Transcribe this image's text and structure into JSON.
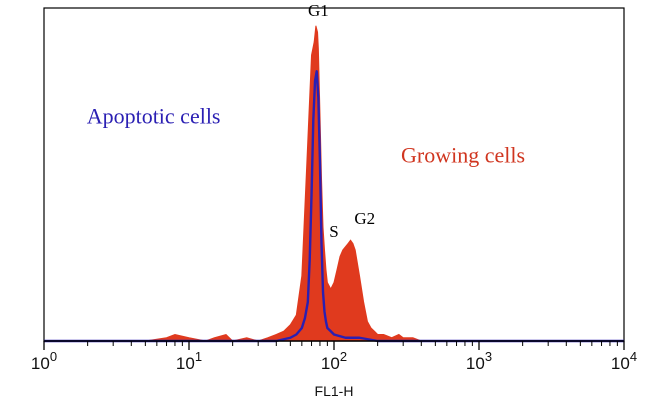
{
  "chart_data": {
    "type": "area",
    "title": "",
    "xlabel": "FL1-H",
    "ylabel": "",
    "x_scale": "log",
    "xlim": [
      1,
      10000
    ],
    "ylim": [
      0,
      100
    ],
    "grid": false,
    "ticks": [
      {
        "value": 1,
        "base": "10",
        "exp": "0"
      },
      {
        "value": 10,
        "base": "10",
        "exp": "1"
      },
      {
        "value": 100,
        "base": "10",
        "exp": "2"
      },
      {
        "value": 1000,
        "base": "10",
        "exp": "3"
      },
      {
        "value": 10000,
        "base": "10",
        "exp": "4"
      }
    ],
    "series": [
      {
        "name": "Growing cells",
        "color": "#e03a1e",
        "style": "filled",
        "x": [
          1,
          5,
          7,
          8,
          10,
          13,
          15,
          18,
          20,
          25,
          30,
          35,
          40,
          45,
          50,
          55,
          60,
          65,
          70,
          73,
          75,
          77,
          78,
          80,
          82,
          84,
          86,
          88,
          90,
          95,
          100,
          105,
          110,
          115,
          120,
          125,
          130,
          135,
          140,
          150,
          160,
          170,
          180,
          190,
          200,
          220,
          250,
          280,
          300,
          350,
          400,
          1000,
          10000
        ],
        "y": [
          0,
          0,
          1,
          2,
          1,
          0,
          1,
          2,
          0,
          1,
          0,
          1,
          2,
          3,
          5,
          8,
          20,
          55,
          88,
          92,
          97,
          95,
          90,
          70,
          50,
          35,
          28,
          22,
          18,
          16,
          18,
          22,
          26,
          28,
          29,
          30,
          31,
          30,
          28,
          20,
          12,
          6,
          4,
          3,
          2,
          2,
          1,
          2,
          1,
          1,
          0,
          0,
          0
        ]
      },
      {
        "name": "Apoptotic cells",
        "color": "#2a1fb3",
        "style": "line",
        "x": [
          1,
          20,
          40,
          50,
          55,
          60,
          63,
          66,
          68,
          70,
          72,
          74,
          76,
          78,
          80,
          82,
          84,
          86,
          88,
          90,
          95,
          100,
          120,
          150,
          200,
          1000,
          10000
        ],
        "y": [
          0,
          0,
          0,
          1,
          2,
          4,
          7,
          12,
          25,
          45,
          68,
          80,
          83,
          75,
          55,
          30,
          15,
          9,
          6,
          4,
          3,
          2,
          1,
          1,
          0,
          0,
          0
        ]
      }
    ],
    "annotations": [
      {
        "label": "G1",
        "x": 78,
        "y": 100,
        "color": "#000000"
      },
      {
        "label": "S",
        "x": 100,
        "y": 32,
        "color": "#000000"
      },
      {
        "label": "G2",
        "x": 163,
        "y": 36,
        "color": "#000000"
      },
      {
        "label": "Apoptotic cells",
        "x": 1.97,
        "y": 67,
        "color": "#2a1fb3"
      },
      {
        "label": "Growing cells",
        "x": 290,
        "y": 55,
        "color": "#d0351f"
      }
    ]
  }
}
